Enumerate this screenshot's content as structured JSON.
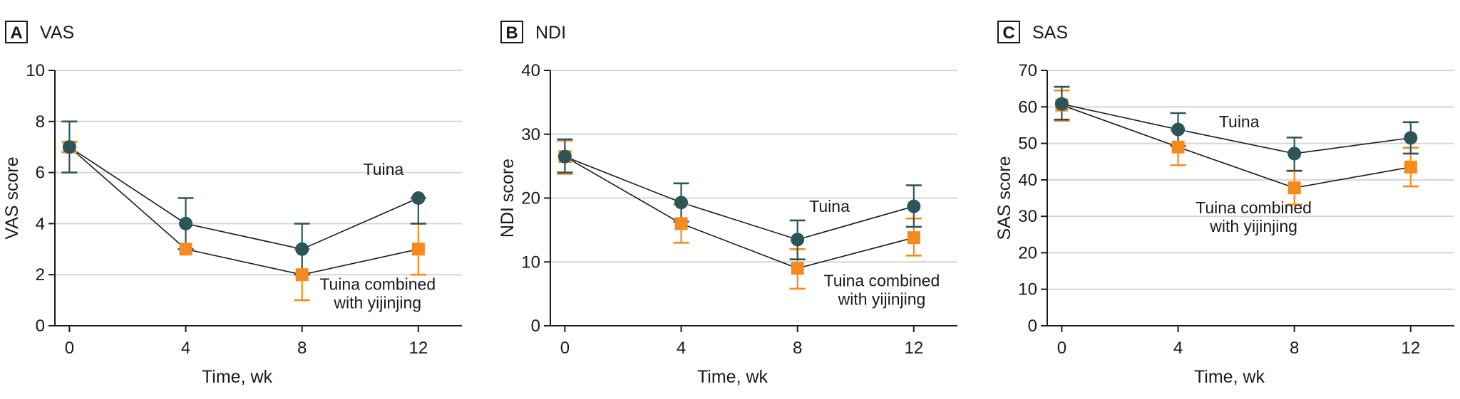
{
  "colors": {
    "tuina": "#2c5559",
    "combined": "#f58a1f",
    "grid": "#d6d6d6",
    "axis": "#1a1a1a"
  },
  "chart_data": [
    {
      "type": "line",
      "panel_letter": "A",
      "title": "VAS",
      "xlabel": "Time, wk",
      "ylabel": "VAS score",
      "x": [
        0,
        4,
        8,
        12
      ],
      "xlim": [
        -0.5,
        13.5
      ],
      "ylim": [
        0,
        10
      ],
      "yticks": [
        0,
        2,
        4,
        6,
        8,
        10
      ],
      "xticks": [
        0,
        4,
        8,
        12
      ],
      "grid": true,
      "series": [
        {
          "name": "Tuina",
          "marker": "circle",
          "values": [
            7,
            4,
            3,
            5
          ],
          "err_low": [
            6,
            3,
            2,
            4
          ],
          "err_high": [
            8,
            5,
            4,
            5
          ]
        },
        {
          "name": "Tuina combined with yijinjing",
          "marker": "square",
          "values": [
            7,
            3,
            2,
            3
          ],
          "err_low": [
            6.8,
            3,
            1,
            2
          ],
          "err_high": [
            7.2,
            3,
            3,
            4
          ]
        }
      ],
      "annotations": [
        {
          "lines": [
            "Tuina"
          ],
          "series": "Tuina",
          "x": 10.8,
          "y": 5.9,
          "anchor": "middle"
        },
        {
          "lines": [
            "Tuina combined",
            "with yijinjing"
          ],
          "series": "Tuina combined with yijinjing",
          "x": 10.6,
          "y": 1.4,
          "anchor": "middle"
        }
      ]
    },
    {
      "type": "line",
      "panel_letter": "B",
      "title": "NDI",
      "xlabel": "Time, wk",
      "ylabel": "NDI score",
      "x": [
        0,
        4,
        8,
        12
      ],
      "xlim": [
        -0.5,
        13.5
      ],
      "ylim": [
        0,
        40
      ],
      "yticks": [
        0,
        10,
        20,
        30,
        40
      ],
      "xticks": [
        0,
        4,
        8,
        12
      ],
      "grid": true,
      "series": [
        {
          "name": "Tuina",
          "marker": "circle",
          "values": [
            26.5,
            19.3,
            13.5,
            18.7
          ],
          "err_low": [
            24,
            16.3,
            10.4,
            15.5
          ],
          "err_high": [
            29.2,
            22.3,
            16.5,
            22
          ]
        },
        {
          "name": "Tuina combined with yijinjing",
          "marker": "square",
          "values": [
            26.5,
            16,
            9,
            13.8
          ],
          "err_low": [
            23.8,
            13,
            5.8,
            11
          ],
          "err_high": [
            29,
            19,
            12,
            16.8
          ]
        }
      ],
      "annotations": [
        {
          "lines": [
            "Tuina"
          ],
          "series": "Tuina",
          "x": 9.1,
          "y": 17.8,
          "anchor": "middle"
        },
        {
          "lines": [
            "Tuina combined",
            "with yijinjing"
          ],
          "series": "Tuina combined with yijinjing",
          "x": 10.9,
          "y": 6.2,
          "anchor": "middle"
        }
      ]
    },
    {
      "type": "line",
      "panel_letter": "C",
      "title": "SAS",
      "xlabel": "Time, wk",
      "ylabel": "SAS score",
      "x": [
        0,
        4,
        8,
        12
      ],
      "xlim": [
        -0.5,
        13.5
      ],
      "ylim": [
        0,
        70
      ],
      "yticks": [
        0,
        10,
        20,
        30,
        40,
        50,
        60,
        70
      ],
      "xticks": [
        0,
        4,
        8,
        12
      ],
      "grid": true,
      "series": [
        {
          "name": "Tuina",
          "marker": "circle",
          "values": [
            60.8,
            53.8,
            47.2,
            51.5
          ],
          "err_low": [
            56.5,
            49.3,
            42.5,
            47.2
          ],
          "err_high": [
            65.5,
            58.3,
            51.6,
            55.8
          ]
        },
        {
          "name": "Tuina combined with yijinjing",
          "marker": "square",
          "values": [
            60.5,
            49,
            37.8,
            43.5
          ],
          "err_low": [
            56.2,
            44,
            33.2,
            38.2
          ],
          "err_high": [
            64.5,
            53.5,
            42.4,
            48.8
          ]
        }
      ],
      "annotations": [
        {
          "lines": [
            "Tuina"
          ],
          "series": "Tuina",
          "x": 6.1,
          "y": 54.4,
          "anchor": "middle"
        },
        {
          "lines": [
            "Tuina combined",
            "with yijinjing"
          ],
          "series": "Tuina combined with yijinjing",
          "x": 6.6,
          "y": 30.8,
          "anchor": "middle"
        }
      ]
    }
  ]
}
